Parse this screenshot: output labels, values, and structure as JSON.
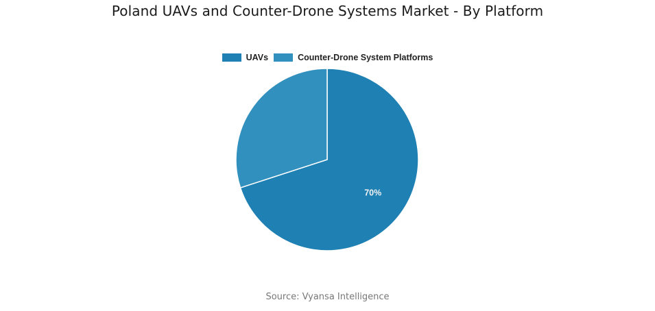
{
  "title": "Poland UAVs and Counter-Drone Systems Market - By Platform",
  "source": "Source: Vyansa Intelligence",
  "legend": [
    {
      "label": "UAVs",
      "color": "#1f80b3"
    },
    {
      "label": "Counter-Drone System Platforms",
      "color": "#3190bd"
    }
  ],
  "chart_data": {
    "type": "pie",
    "title": "Poland UAVs and Counter-Drone Systems Market - By Platform",
    "categories": [
      "UAVs",
      "Counter-Drone System Platforms"
    ],
    "values": [
      70,
      30
    ],
    "unit": "%",
    "data_labels": [
      "70%",
      ""
    ],
    "colors": [
      "#1f80b3",
      "#3190bd"
    ],
    "legend_position": "top",
    "start_angle_deg": 0,
    "direction": "clockwise"
  }
}
